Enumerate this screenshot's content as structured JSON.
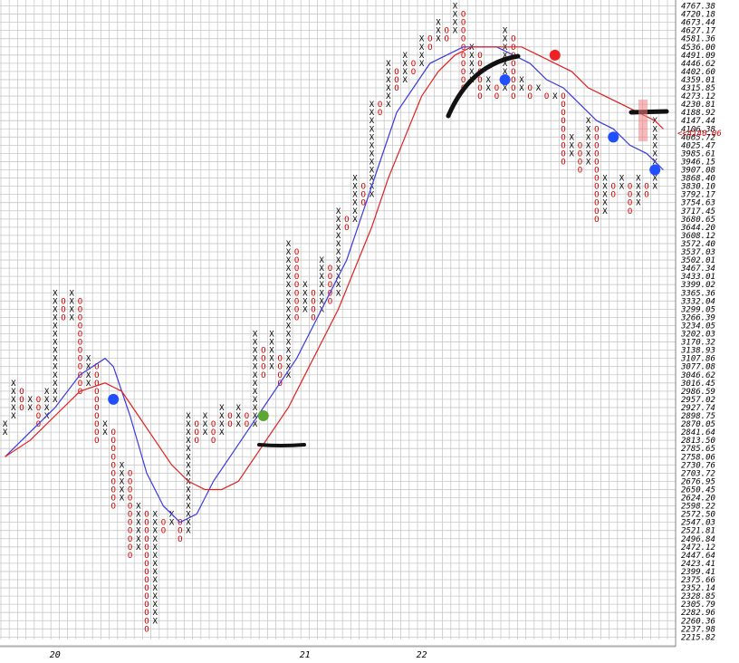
{
  "chart_data": {
    "type": "point-and-figure",
    "y_scale": "log",
    "price_levels": [
      "4767.38",
      "4720.18",
      "4673.44",
      "4627.17",
      "4581.36",
      "4536.00",
      "4491.09",
      "4446.62",
      "4402.60",
      "4359.01",
      "4315.85",
      "4273.12",
      "4230.81",
      "4188.92",
      "4147.44",
      "4106.38",
      "4065.72",
      "4025.47",
      "3985.61",
      "3946.15",
      "3907.08",
      "3868.40",
      "3830.10",
      "3792.17",
      "3754.63",
      "3717.45",
      "3680.65",
      "3644.20",
      "3608.12",
      "3572.40",
      "3537.03",
      "3502.01",
      "3467.34",
      "3433.01",
      "3399.02",
      "3365.36",
      "3332.04",
      "3299.05",
      "3266.39",
      "3234.05",
      "3202.03",
      "3170.32",
      "3138.93",
      "3107.86",
      "3077.08",
      "3046.62",
      "3016.45",
      "2986.59",
      "2957.02",
      "2927.74",
      "2898.75",
      "2870.05",
      "2841.64",
      "2813.50",
      "2785.65",
      "2758.06",
      "2730.76",
      "2703.72",
      "2676.95",
      "2650.45",
      "2624.20",
      "2598.22",
      "2572.50",
      "2547.03",
      "2521.81",
      "2496.84",
      "2472.12",
      "2447.64",
      "2423.41",
      "2399.41",
      "2375.66",
      "2352.14",
      "2328.85",
      "2305.79",
      "2282.96",
      "2260.36",
      "2237.98",
      "2215.82"
    ],
    "current_price_label": "<<4140.06",
    "x_labels": [
      {
        "label": "20",
        "column": 6
      },
      {
        "label": "21",
        "column": 36
      },
      {
        "label": "22",
        "column": 50
      }
    ],
    "columns": [
      {
        "type": "X",
        "from": 2841.64,
        "to": 2870.05
      },
      {
        "type": "X",
        "from": 2898.75,
        "to": 3016.45
      },
      {
        "type": "O",
        "from": 2927.74,
        "to": 2986.59
      },
      {
        "type": "X",
        "from": 2927.74,
        "to": 2957.02
      },
      {
        "type": "O",
        "from": 2870.05,
        "to": 2957.02
      },
      {
        "type": "X",
        "from": 2898.75,
        "to": 2986.59
      },
      {
        "type": "X",
        "from": 2957.02,
        "to": 3365.36
      },
      {
        "type": "O",
        "from": 3266.39,
        "to": 3332.04
      },
      {
        "type": "X",
        "from": 3266.39,
        "to": 3365.36
      },
      {
        "type": "O",
        "from": 2986.59,
        "to": 3332.04
      },
      {
        "type": "X",
        "from": 3016.45,
        "to": 3107.86
      },
      {
        "type": "O",
        "from": 2813.5,
        "to": 3077.08
      },
      {
        "type": "X",
        "from": 2841.64,
        "to": 2870.05
      },
      {
        "type": "O",
        "from": 2598.22,
        "to": 2841.64
      },
      {
        "type": "X",
        "from": 2624.2,
        "to": 2730.76
      },
      {
        "type": "O",
        "from": 2447.64,
        "to": 2703.72
      },
      {
        "type": "X",
        "from": 2472.12,
        "to": 2598.22
      },
      {
        "type": "O",
        "from": 2237.98,
        "to": 2572.5
      },
      {
        "type": "X",
        "from": 2260.36,
        "to": 2572.5
      },
      {
        "type": "O",
        "from": 2521.81,
        "to": 2547.03
      },
      {
        "type": "X",
        "from": 2547.03,
        "to": 2572.5
      },
      {
        "type": "O",
        "from": 2496.84,
        "to": 2547.03
      },
      {
        "type": "X",
        "from": 2521.81,
        "to": 2898.75
      },
      {
        "type": "O",
        "from": 2813.5,
        "to": 2870.05
      },
      {
        "type": "X",
        "from": 2841.64,
        "to": 2898.75
      },
      {
        "type": "O",
        "from": 2813.5,
        "to": 2870.05
      },
      {
        "type": "X",
        "from": 2841.64,
        "to": 2927.74
      },
      {
        "type": "O",
        "from": 2870.05,
        "to": 2898.75
      },
      {
        "type": "X",
        "from": 2870.05,
        "to": 2927.74
      },
      {
        "type": "O",
        "from": 2870.05,
        "to": 2898.75
      },
      {
        "type": "X",
        "from": 2870.05,
        "to": 3202.03
      },
      {
        "type": "O",
        "from": 3046.62,
        "to": 3138.93
      },
      {
        "type": "X",
        "from": 3077.08,
        "to": 3202.03
      },
      {
        "type": "O",
        "from": 3016.45,
        "to": 3107.86
      },
      {
        "type": "X",
        "from": 3046.62,
        "to": 3572.4
      },
      {
        "type": "O",
        "from": 3266.39,
        "to": 3537.03
      },
      {
        "type": "X",
        "from": 3299.05,
        "to": 3399.02
      },
      {
        "type": "O",
        "from": 3266.39,
        "to": 3365.36
      },
      {
        "type": "X",
        "from": 3299.05,
        "to": 3502.01
      },
      {
        "type": "O",
        "from": 3332.04,
        "to": 3467.34
      },
      {
        "type": "X",
        "from": 3365.36,
        "to": 3717.45
      },
      {
        "type": "O",
        "from": 3644.2,
        "to": 3680.65
      },
      {
        "type": "X",
        "from": 3680.65,
        "to": 3868.4
      },
      {
        "type": "O",
        "from": 3754.63,
        "to": 3830.1
      },
      {
        "type": "X",
        "from": 3792.17,
        "to": 4230.81
      },
      {
        "type": "O",
        "from": 4188.92,
        "to": 4230.81
      },
      {
        "type": "X",
        "from": 4230.81,
        "to": 4446.62
      },
      {
        "type": "O",
        "from": 4315.85,
        "to": 4402.6
      },
      {
        "type": "X",
        "from": 4359.01,
        "to": 4491.09
      },
      {
        "type": "O",
        "from": 4402.6,
        "to": 4446.62
      },
      {
        "type": "X",
        "from": 4446.62,
        "to": 4581.36
      },
      {
        "type": "O",
        "from": 4536.0,
        "to": 4581.36
      },
      {
        "type": "X",
        "from": 4581.36,
        "to": 4673.44
      },
      {
        "type": "O",
        "from": 4581.36,
        "to": 4627.17
      },
      {
        "type": "X",
        "from": 4627.17,
        "to": 4767.38
      },
      {
        "type": "O",
        "from": 4315.85,
        "to": 4720.18
      },
      {
        "type": "X",
        "from": 4359.01,
        "to": 4536.0
      },
      {
        "type": "O",
        "from": 4273.12,
        "to": 4491.09
      },
      {
        "type": "X",
        "from": 4315.85,
        "to": 4359.01
      },
      {
        "type": "O",
        "from": 4273.12,
        "to": 4315.85
      },
      {
        "type": "X",
        "from": 4315.85,
        "to": 4627.17
      },
      {
        "type": "O",
        "from": 4273.12,
        "to": 4581.36
      },
      {
        "type": "X",
        "from": 4315.85,
        "to": 4359.01
      },
      {
        "type": "O",
        "from": 4273.12,
        "to": 4315.85
      },
      {
        "type": "X",
        "from": 4315.85,
        "to": 4315.85
      },
      {
        "type": "O",
        "from": 4273.12,
        "to": 4273.12
      },
      {
        "type": "X",
        "from": 4273.12,
        "to": 4273.12
      },
      {
        "type": "O",
        "from": 3946.15,
        "to": 4273.12
      },
      {
        "type": "X",
        "from": 3985.61,
        "to": 4065.72
      },
      {
        "type": "O",
        "from": 3907.08,
        "to": 4025.47
      },
      {
        "type": "X",
        "from": 3946.15,
        "to": 4147.44
      },
      {
        "type": "O",
        "from": 3680.65,
        "to": 4106.38
      },
      {
        "type": "X",
        "from": 3717.45,
        "to": 3868.4
      },
      {
        "type": "O",
        "from": 3792.17,
        "to": 3830.1
      },
      {
        "type": "X",
        "from": 3830.1,
        "to": 3868.4
      },
      {
        "type": "O",
        "from": 3717.45,
        "to": 3830.1
      },
      {
        "type": "X",
        "from": 3754.63,
        "to": 3868.4
      },
      {
        "type": "O",
        "from": 3792.17,
        "to": 3830.1
      },
      {
        "type": "X",
        "from": 3830.1,
        "to": 4147.44
      }
    ],
    "blue_line": [
      [
        0,
        2758.06
      ],
      [
        3,
        2841.64
      ],
      [
        6,
        2927.74
      ],
      [
        9,
        3046.62
      ],
      [
        12,
        3107.86
      ],
      [
        13,
        3077.08
      ],
      [
        15,
        2898.75
      ],
      [
        17,
        2703.72
      ],
      [
        19,
        2598.22
      ],
      [
        21,
        2547.03
      ],
      [
        23,
        2572.5
      ],
      [
        25,
        2676.95
      ],
      [
        27,
        2758.06
      ],
      [
        29,
        2841.64
      ],
      [
        31,
        2927.74
      ],
      [
        33,
        3016.45
      ],
      [
        35,
        3107.86
      ],
      [
        37,
        3234.05
      ],
      [
        39,
        3365.36
      ],
      [
        41,
        3502.01
      ],
      [
        43,
        3717.45
      ],
      [
        45,
        3946.15
      ],
      [
        47,
        4188.92
      ],
      [
        49,
        4315.85
      ],
      [
        51,
        4446.62
      ],
      [
        53,
        4491.09
      ],
      [
        55,
        4536.0
      ],
      [
        57,
        4536.0
      ],
      [
        59,
        4536.0
      ],
      [
        61,
        4491.09
      ],
      [
        63,
        4446.62
      ],
      [
        65,
        4359.01
      ],
      [
        67,
        4315.85
      ],
      [
        69,
        4230.81
      ],
      [
        71,
        4147.44
      ],
      [
        73,
        4106.38
      ],
      [
        75,
        4025.47
      ],
      [
        77,
        3985.61
      ],
      [
        79,
        3907.08
      ]
    ],
    "red_line": [
      [
        0,
        2758.06
      ],
      [
        3,
        2813.5
      ],
      [
        6,
        2898.75
      ],
      [
        9,
        2986.59
      ],
      [
        12,
        3016.45
      ],
      [
        14,
        2986.59
      ],
      [
        16,
        2898.75
      ],
      [
        18,
        2813.5
      ],
      [
        20,
        2730.76
      ],
      [
        22,
        2676.95
      ],
      [
        24,
        2650.45
      ],
      [
        26,
        2650.45
      ],
      [
        28,
        2676.95
      ],
      [
        30,
        2758.06
      ],
      [
        32,
        2841.64
      ],
      [
        34,
        2927.74
      ],
      [
        36,
        3046.62
      ],
      [
        38,
        3170.32
      ],
      [
        40,
        3299.05
      ],
      [
        42,
        3467.34
      ],
      [
        44,
        3644.2
      ],
      [
        46,
        3868.4
      ],
      [
        48,
        4065.72
      ],
      [
        50,
        4273.12
      ],
      [
        52,
        4402.6
      ],
      [
        54,
        4491.09
      ],
      [
        56,
        4536.0
      ],
      [
        58,
        4536.0
      ],
      [
        60,
        4536.0
      ],
      [
        62,
        4536.0
      ],
      [
        64,
        4491.09
      ],
      [
        66,
        4446.62
      ],
      [
        68,
        4402.6
      ],
      [
        70,
        4315.85
      ],
      [
        72,
        4273.12
      ],
      [
        74,
        4230.81
      ],
      [
        76,
        4188.92
      ],
      [
        78,
        4147.44
      ],
      [
        79,
        4106.38
      ]
    ],
    "signals": [
      {
        "color": "#1f4fff",
        "column": 13,
        "price": 2957.02
      },
      {
        "color": "#5aa832",
        "column": 31,
        "price": 2898.75
      },
      {
        "color": "#1f4fff",
        "column": 60,
        "price": 4359.01
      },
      {
        "color": "#ee2222",
        "column": 66,
        "price": 4491.09
      },
      {
        "color": "#1f4fff",
        "column": 73,
        "price": 4065.72
      },
      {
        "color": "#1f4fff",
        "column": 78,
        "price": 3907.08
      }
    ]
  }
}
